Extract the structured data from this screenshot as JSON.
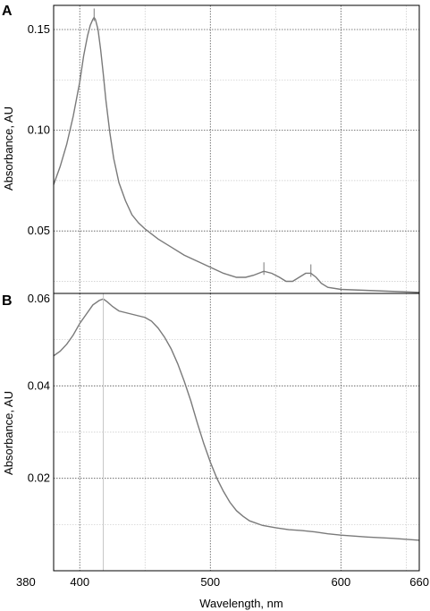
{
  "chart_data": [
    {
      "type": "line",
      "panel_label": "A",
      "xlabel": "",
      "ylabel": "Absorbance, AU",
      "xlim": [
        380,
        660
      ],
      "ylim": [
        0.019,
        0.162
      ],
      "y_ticks": [
        {
          "value": 0.05,
          "label": "0.05"
        },
        {
          "value": 0.1,
          "label": "0.10"
        },
        {
          "value": 0.15,
          "label": "0.15"
        }
      ],
      "x_ticks": [
        400,
        500,
        600
      ],
      "x_ticks_labeled": false,
      "grid": true,
      "peaks": [
        411,
        541,
        577
      ],
      "series": [
        {
          "x": [
            380,
            385,
            390,
            395,
            400,
            403,
            406,
            408,
            410,
            411,
            412,
            414,
            416,
            418,
            420,
            423,
            426,
            430,
            435,
            440,
            445,
            450,
            460,
            470,
            480,
            490,
            500,
            510,
            520,
            527,
            533,
            541,
            547,
            553,
            558,
            563,
            568,
            573,
            577,
            581,
            585,
            590,
            600,
            620,
            640,
            660
          ],
          "y": [
            0.073,
            0.082,
            0.093,
            0.107,
            0.124,
            0.137,
            0.147,
            0.152,
            0.155,
            0.156,
            0.155,
            0.15,
            0.14,
            0.128,
            0.115,
            0.099,
            0.086,
            0.074,
            0.065,
            0.058,
            0.054,
            0.051,
            0.046,
            0.042,
            0.038,
            0.035,
            0.032,
            0.029,
            0.027,
            0.027,
            0.028,
            0.03,
            0.029,
            0.027,
            0.025,
            0.025,
            0.027,
            0.029,
            0.029,
            0.027,
            0.024,
            0.022,
            0.021,
            0.0205,
            0.02,
            0.0195
          ]
        }
      ]
    },
    {
      "type": "line",
      "panel_label": "B",
      "xlabel": "Wavelength, nm",
      "ylabel": "Absorbance, AU",
      "xlim": [
        380,
        660
      ],
      "ylim": [
        0.0,
        0.06
      ],
      "y_ticks": [
        {
          "value": 0.02,
          "label": "0.02"
        },
        {
          "value": 0.04,
          "label": "0.04"
        },
        {
          "value": 0.06,
          "label": "0.06"
        }
      ],
      "x_ticks": [
        {
          "value": 380,
          "label": "380"
        },
        {
          "value": 400,
          "label": "400"
        },
        {
          "value": 500,
          "label": "500"
        },
        {
          "value": 600,
          "label": "600"
        },
        {
          "value": 660,
          "label": "660"
        }
      ],
      "grid": true,
      "peaks": [
        418
      ],
      "series": [
        {
          "x": [
            380,
            385,
            390,
            395,
            400,
            405,
            410,
            415,
            418,
            421,
            425,
            430,
            440,
            450,
            455,
            460,
            465,
            470,
            475,
            480,
            485,
            490,
            495,
            500,
            505,
            510,
            515,
            520,
            525,
            530,
            540,
            550,
            560,
            570,
            580,
            590,
            600,
            620,
            640,
            660
          ],
          "y": [
            0.0465,
            0.0475,
            0.049,
            0.051,
            0.0535,
            0.0555,
            0.0575,
            0.0585,
            0.0588,
            0.0582,
            0.0572,
            0.0562,
            0.0555,
            0.0548,
            0.054,
            0.0525,
            0.0505,
            0.048,
            0.0448,
            0.041,
            0.0368,
            0.032,
            0.0275,
            0.0235,
            0.02,
            0.0172,
            0.0148,
            0.013,
            0.0118,
            0.0108,
            0.0098,
            0.0093,
            0.0089,
            0.0087,
            0.0084,
            0.008,
            0.0077,
            0.0073,
            0.007,
            0.0066
          ]
        }
      ]
    }
  ]
}
